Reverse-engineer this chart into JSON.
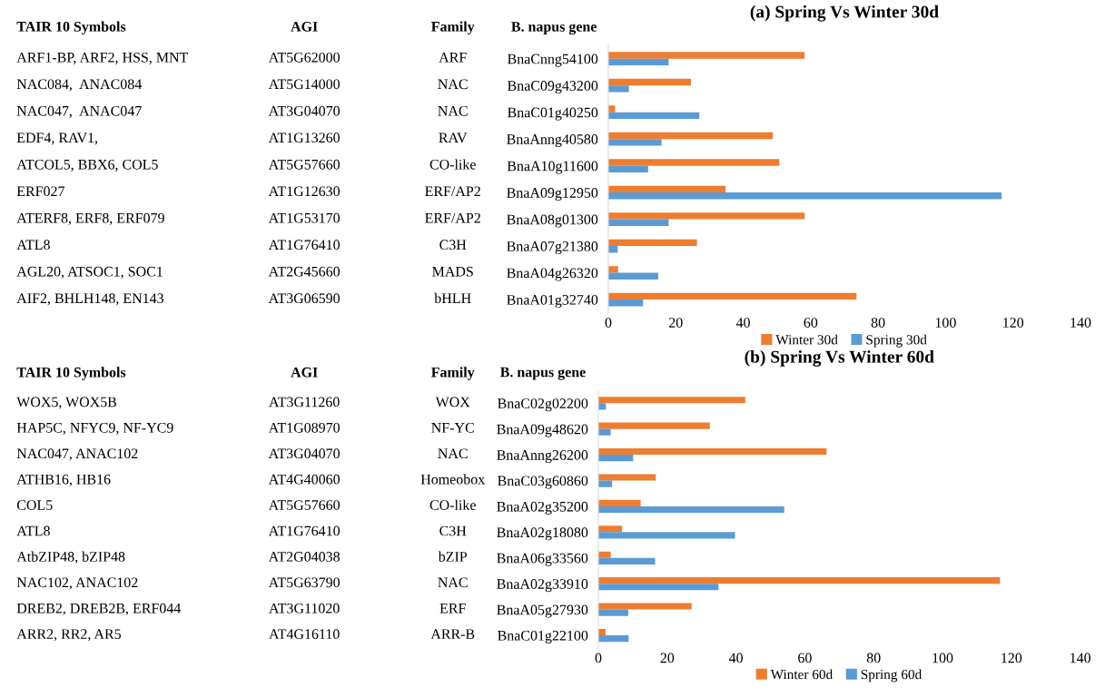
{
  "chart_data": [
    {
      "type": "other",
      "annotations": [
        "TAIR 10 Symbols",
        "AGI",
        "Family",
        "ARF1-BP, ARF2, HSS, MNT",
        "AT5G62000",
        "ARF",
        "NAC084,  ANAC084",
        "AT5G14000",
        "NAC",
        "NAC047,  ANAC047",
        "AT3G04070",
        "NAC",
        "EDF4, RAV1,",
        "AT1G13260",
        "RAV",
        "ATCOL5, BBX6, COL5",
        "AT5G57660",
        "CO-like",
        "ERF027",
        "AT1G12630",
        "ERF/AP2",
        "ATERF8, ERF8, ERF079",
        "AT1G53170",
        "ERF/AP2",
        "ATL8",
        "AT1G76410",
        "C3H",
        "AGL20, ATSOC1, SOC1",
        "AT2G45660",
        "MADS",
        "AIF2, BHLH148, EN143",
        "AT3G06590",
        "bHLH"
      ]
    },
    {
      "type": "bar",
      "orientation": "horizontal",
      "title": "(a) Spring Vs Winter 30d",
      "ylabel": "B. napus gene",
      "categories": [
        "BnaCnng54100",
        "BnaC09g43200",
        "BnaC01g40250",
        "BnaAnng40580",
        "BnaA10g11600",
        "BnaA09g12950",
        "BnaA08g01300",
        "BnaA07g21380",
        "BnaA04g26320",
        "BnaA01g32740"
      ],
      "series": [
        {
          "name": "Winter 30d",
          "color": "#ed7d31",
          "values": [
            58.2,
            24.5,
            2,
            48.8,
            50.7,
            34.8,
            58.2,
            26.3,
            2.9,
            73.6
          ]
        },
        {
          "name": "Spring 30d",
          "color": "#5b9bd5",
          "values": [
            17.9,
            6.1,
            27,
            15.8,
            11.8,
            116.6,
            17.9,
            2.8,
            14.8,
            10.3
          ]
        }
      ],
      "xlim": [
        0,
        140
      ],
      "xticks": [
        0,
        20,
        40,
        60,
        80,
        100,
        120,
        140
      ],
      "grid": false,
      "legend": "bottom"
    },
    {
      "type": "other",
      "annotations": [
        "TAIR 10 Symbols",
        "AGI",
        "Family",
        "WOX5, WOX5B",
        "AT3G11260",
        "WOX",
        "HAP5C, NFYC9, NF-YC9",
        "AT1G08970",
        "NF-YC",
        "NAC047, ANAC102",
        "AT3G04070",
        "NAC",
        "ATHB16, HB16",
        "AT4G40060",
        "Homeobox",
        "COL5",
        "AT5G57660",
        "CO-like",
        "ATL8",
        "AT1G76410",
        "C3H",
        "AtbZIP48, bZIP48",
        "AT2G04038",
        "bZIP",
        "NAC102, ANAC102",
        "AT5G63790",
        "NAC",
        "DREB2, DREB2B, ERF044",
        "AT3G11020",
        "ERF",
        "ARR2, RR2, AR5",
        "AT4G16110",
        "ARR-B"
      ]
    },
    {
      "type": "bar",
      "orientation": "horizontal",
      "title": "(b) Spring Vs Winter 60d",
      "ylabel": "B. napus gene",
      "categories": [
        "BnaC02g02200",
        "BnaA09g48620",
        "BnaAnng26200",
        "BnaC03g60860",
        "BnaA02g35200",
        "BnaA02g18080",
        "BnaA06g33560",
        "BnaA02g33910",
        "BnaA05g27930",
        "BnaC01g22100"
      ],
      "series": [
        {
          "name": "Winter 60d",
          "color": "#ed7d31",
          "values": [
            42.7,
            32.4,
            66.3,
            16.7,
            12.3,
            6.9,
            3.6,
            116.7,
            27.1,
            2.1
          ]
        },
        {
          "name": "Spring 60d",
          "color": "#5b9bd5",
          "values": [
            2.2,
            3.6,
            10.1,
            4,
            54,
            39.7,
            16.5,
            34.9,
            8.7,
            8.8
          ]
        }
      ],
      "xlim": [
        0,
        140
      ],
      "xticks": [
        0,
        20,
        40,
        60,
        80,
        100,
        120,
        140
      ],
      "grid": false,
      "legend": "bottom"
    }
  ]
}
